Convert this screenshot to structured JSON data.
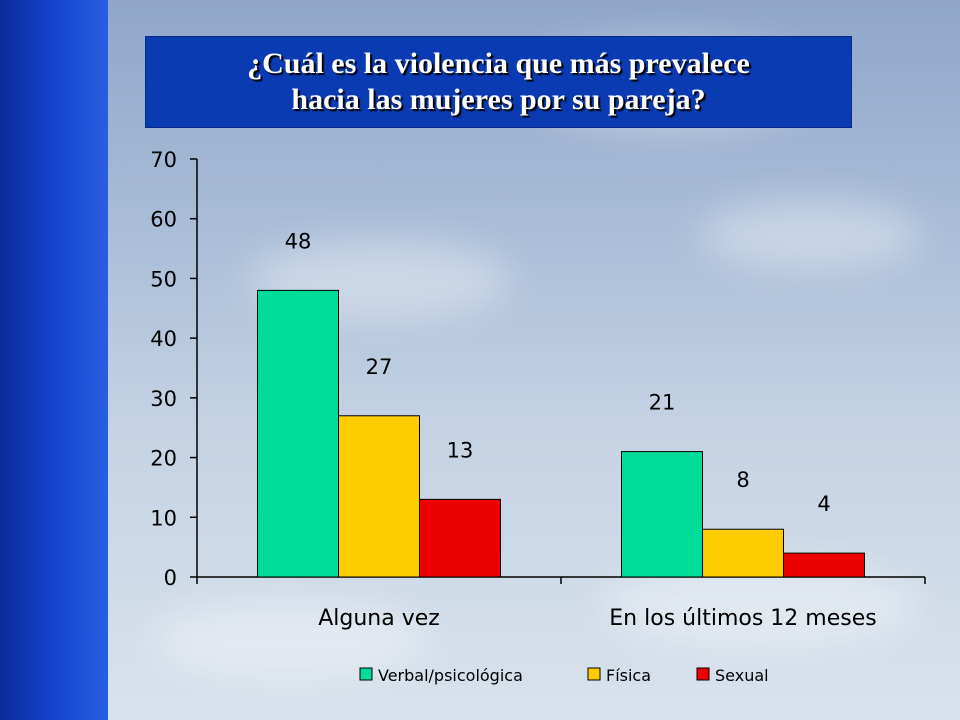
{
  "colors": {
    "verbal": "#00dd99",
    "fisica": "#ffcc00",
    "sexual": "#ee0000"
  },
  "title": {
    "line1": "¿Cuál es la violencia que más prevalece",
    "line2": "hacia las mujeres por su pareja?"
  },
  "chart_data": {
    "type": "bar",
    "title": "¿Cuál es la violencia que más prevalece hacia las mujeres por su pareja?",
    "categories": [
      "Alguna vez",
      "En los últimos 12 meses"
    ],
    "series": [
      {
        "name": "Verbal/psicológica",
        "values": [
          48,
          21
        ]
      },
      {
        "name": "Física",
        "values": [
          27,
          8
        ]
      },
      {
        "name": "Sexual",
        "values": [
          13,
          4
        ]
      }
    ],
    "ylim": [
      0,
      70
    ],
    "yticks": [
      0,
      10,
      20,
      30,
      40,
      50,
      60,
      70
    ],
    "grid": false,
    "legend": "bottom"
  }
}
